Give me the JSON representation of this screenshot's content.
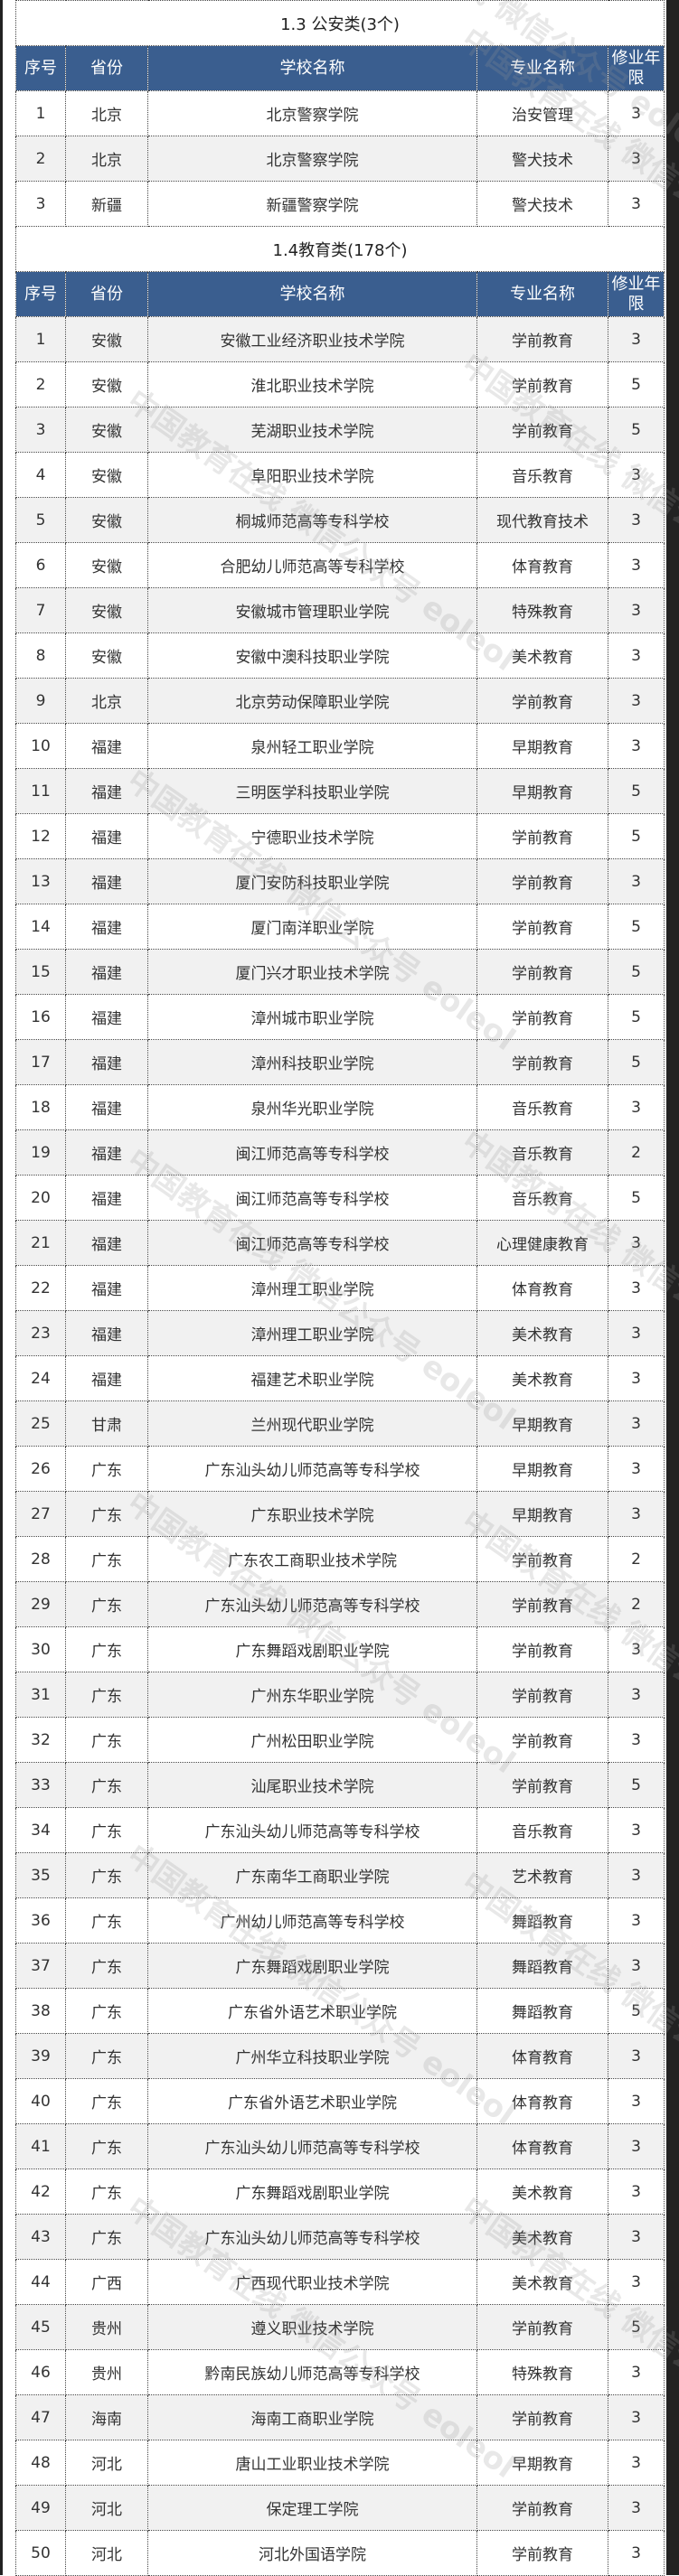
{
  "columns": [
    "序号",
    "省份",
    "学校名称",
    "专业名称",
    "修业年限"
  ],
  "sections": [
    {
      "title": "1.3 公安类(3个)",
      "rows": [
        [
          "1",
          "北京",
          "北京警察学院",
          "治安管理",
          "3"
        ],
        [
          "2",
          "北京",
          "北京警察学院",
          "警犬技术",
          "3"
        ],
        [
          "3",
          "新疆",
          "新疆警察学院",
          "警犬技术",
          "3"
        ]
      ]
    },
    {
      "title": "1.4教育类(178个)",
      "rows": [
        [
          "1",
          "安徽",
          "安徽工业经济职业技术学院",
          "学前教育",
          "3"
        ],
        [
          "2",
          "安徽",
          "淮北职业技术学院",
          "学前教育",
          "5"
        ],
        [
          "3",
          "安徽",
          "芜湖职业技术学院",
          "学前教育",
          "5"
        ],
        [
          "4",
          "安徽",
          "阜阳职业技术学院",
          "音乐教育",
          "3"
        ],
        [
          "5",
          "安徽",
          "桐城师范高等专科学校",
          "现代教育技术",
          "3"
        ],
        [
          "6",
          "安徽",
          "合肥幼儿师范高等专科学校",
          "体育教育",
          "3"
        ],
        [
          "7",
          "安徽",
          "安徽城市管理职业学院",
          "特殊教育",
          "3"
        ],
        [
          "8",
          "安徽",
          "安徽中澳科技职业学院",
          "美术教育",
          "3"
        ],
        [
          "9",
          "北京",
          "北京劳动保障职业学院",
          "学前教育",
          "3"
        ],
        [
          "10",
          "福建",
          "泉州轻工职业学院",
          "早期教育",
          "3"
        ],
        [
          "11",
          "福建",
          "三明医学科技职业学院",
          "早期教育",
          "5"
        ],
        [
          "12",
          "福建",
          "宁德职业技术学院",
          "学前教育",
          "5"
        ],
        [
          "13",
          "福建",
          "厦门安防科技职业学院",
          "学前教育",
          "3"
        ],
        [
          "14",
          "福建",
          "厦门南洋职业学院",
          "学前教育",
          "5"
        ],
        [
          "15",
          "福建",
          "厦门兴才职业技术学院",
          "学前教育",
          "5"
        ],
        [
          "16",
          "福建",
          "漳州城市职业学院",
          "学前教育",
          "5"
        ],
        [
          "17",
          "福建",
          "漳州科技职业学院",
          "学前教育",
          "5"
        ],
        [
          "18",
          "福建",
          "泉州华光职业学院",
          "音乐教育",
          "3"
        ],
        [
          "19",
          "福建",
          "闽江师范高等专科学校",
          "音乐教育",
          "2"
        ],
        [
          "20",
          "福建",
          "闽江师范高等专科学校",
          "音乐教育",
          "5"
        ],
        [
          "21",
          "福建",
          "闽江师范高等专科学校",
          "心理健康教育",
          "3"
        ],
        [
          "22",
          "福建",
          "漳州理工职业学院",
          "体育教育",
          "3"
        ],
        [
          "23",
          "福建",
          "漳州理工职业学院",
          "美术教育",
          "3"
        ],
        [
          "24",
          "福建",
          "福建艺术职业学院",
          "美术教育",
          "3"
        ],
        [
          "25",
          "甘肃",
          "兰州现代职业学院",
          "早期教育",
          "3"
        ],
        [
          "26",
          "广东",
          "广东汕头幼儿师范高等专科学校",
          "早期教育",
          "3"
        ],
        [
          "27",
          "广东",
          "广东职业技术学院",
          "早期教育",
          "3"
        ],
        [
          "28",
          "广东",
          "广东农工商职业技术学院",
          "学前教育",
          "2"
        ],
        [
          "29",
          "广东",
          "广东汕头幼儿师范高等专科学校",
          "学前教育",
          "2"
        ],
        [
          "30",
          "广东",
          "广东舞蹈戏剧职业学院",
          "学前教育",
          "3"
        ],
        [
          "31",
          "广东",
          "广州东华职业学院",
          "学前教育",
          "3"
        ],
        [
          "32",
          "广东",
          "广州松田职业学院",
          "学前教育",
          "3"
        ],
        [
          "33",
          "广东",
          "汕尾职业技术学院",
          "学前教育",
          "5"
        ],
        [
          "34",
          "广东",
          "广东汕头幼儿师范高等专科学校",
          "音乐教育",
          "3"
        ],
        [
          "35",
          "广东",
          "广东南华工商职业学院",
          "艺术教育",
          "3"
        ],
        [
          "36",
          "广东",
          "广州幼儿师范高等专科学校",
          "舞蹈教育",
          "3"
        ],
        [
          "37",
          "广东",
          "广东舞蹈戏剧职业学院",
          "舞蹈教育",
          "3"
        ],
        [
          "38",
          "广东",
          "广东省外语艺术职业学院",
          "舞蹈教育",
          "5"
        ],
        [
          "39",
          "广东",
          "广州华立科技职业学院",
          "体育教育",
          "3"
        ],
        [
          "40",
          "广东",
          "广东省外语艺术职业学院",
          "体育教育",
          "3"
        ],
        [
          "41",
          "广东",
          "广东汕头幼儿师范高等专科学校",
          "体育教育",
          "3"
        ],
        [
          "42",
          "广东",
          "广东舞蹈戏剧职业学院",
          "美术教育",
          "3"
        ],
        [
          "43",
          "广东",
          "广东汕头幼儿师范高等专科学校",
          "美术教育",
          "3"
        ],
        [
          "44",
          "广西",
          "广西现代职业技术学院",
          "美术教育",
          "3"
        ],
        [
          "45",
          "贵州",
          "遵义职业技术学院",
          "学前教育",
          "5"
        ],
        [
          "46",
          "贵州",
          "黔南民族幼儿师范高等专科学校",
          "特殊教育",
          "3"
        ],
        [
          "47",
          "海南",
          "海南工商职业学院",
          "学前教育",
          "3"
        ],
        [
          "48",
          "河北",
          "唐山工业职业技术学院",
          "早期教育",
          "3"
        ],
        [
          "49",
          "河北",
          "保定理工学院",
          "学前教育",
          "3"
        ],
        [
          "50",
          "河北",
          "河北外国语学院",
          "学前教育",
          "3"
        ]
      ]
    }
  ],
  "watermark": "中国教育在线 微信公众号 eoleol",
  "colors": {
    "header_bg": "#3a5e8f",
    "row_alt": "#f1f1f1"
  }
}
